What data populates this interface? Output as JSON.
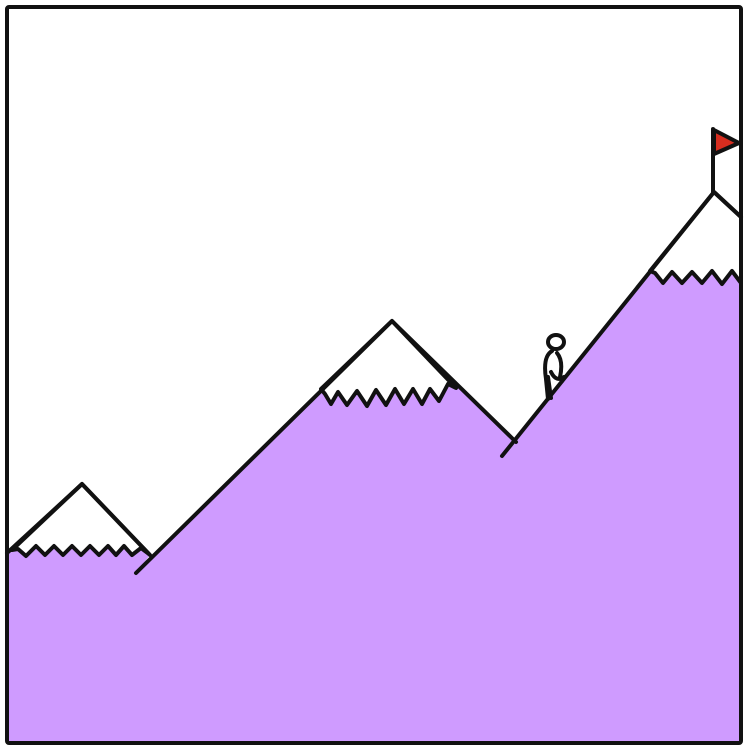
{
  "colors": {
    "background": "#ffffff",
    "mountain_fill": "#cf9bff",
    "outline": "#111111",
    "snow": "#ffffff",
    "flag": "#d62d1f"
  },
  "illustration": {
    "subject": "climber-ascending-mountains",
    "elements": [
      "frame",
      "small-peak",
      "middle-peak",
      "tall-peak",
      "climber",
      "summit-flag"
    ]
  }
}
